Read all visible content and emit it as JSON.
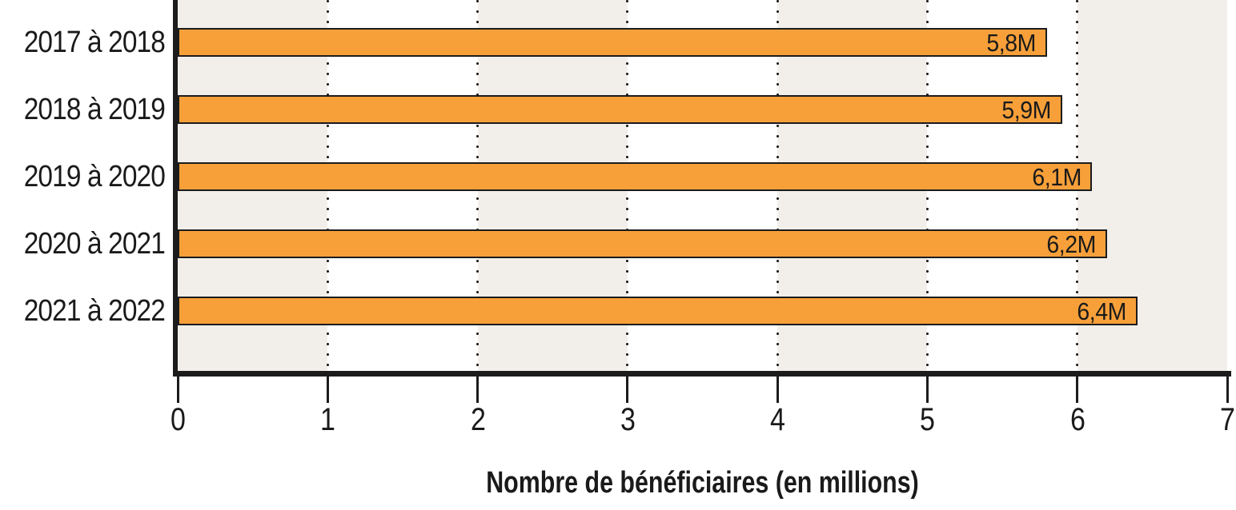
{
  "chart_data": {
    "type": "bar",
    "orientation": "horizontal",
    "categories": [
      "2017 à 2018",
      "2018 à 2019",
      "2019 à 2020",
      "2020 à 2021",
      "2021 à 2022"
    ],
    "values": [
      5.8,
      5.9,
      6.1,
      6.2,
      6.4
    ],
    "bar_labels": [
      "5,8M",
      "5,9M",
      "6,1M",
      "6,2M",
      "6,4M"
    ],
    "xlabel": "Nombre de bénéficiaires (en millions)",
    "x_ticks": [
      0,
      1,
      2,
      3,
      4,
      5,
      6,
      7
    ],
    "xlim": [
      0,
      7
    ],
    "grid": "vertical dotted lines at integer ticks",
    "legend": "none",
    "background": "alternating vertical stripes per unit, starting gray at 0",
    "colors": {
      "bar_fill": "#F7A03A",
      "bar_border": "#1C1C1C",
      "stripe_gray": "#F2EFEB",
      "stripe_white": "#FFFFFF",
      "axis": "#1C1C1C",
      "text": "#1A1A1A"
    }
  }
}
